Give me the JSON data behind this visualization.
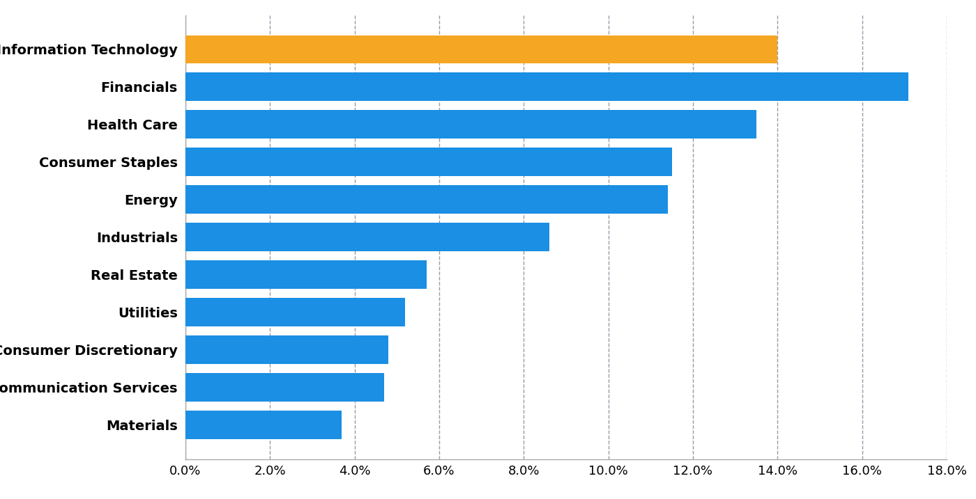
{
  "categories": [
    "Information Technology",
    "Financials",
    "Health Care",
    "Consumer Staples",
    "Energy",
    "Industrials",
    "Real Estate",
    "Utilities",
    "Consumer Discretionary",
    "Communication Services",
    "Materials"
  ],
  "values": [
    0.14,
    0.171,
    0.135,
    0.115,
    0.114,
    0.086,
    0.057,
    0.052,
    0.048,
    0.047,
    0.037
  ],
  "bar_colors": [
    "#F5A623",
    "#1A8FE3",
    "#1A8FE3",
    "#1A8FE3",
    "#1A8FE3",
    "#1A8FE3",
    "#1A8FE3",
    "#1A8FE3",
    "#1A8FE3",
    "#1A8FE3",
    "#1A8FE3"
  ],
  "xlim": [
    0,
    0.18
  ],
  "xticks": [
    0.0,
    0.02,
    0.04,
    0.06,
    0.08,
    0.1,
    0.12,
    0.14,
    0.16,
    0.18
  ],
  "background_color": "#FFFFFF",
  "grid_color": "#9999AA",
  "bar_height": 0.75,
  "tick_label_fontsize": 14,
  "axis_label_fontsize": 13,
  "spine_color": "#AAAAAA"
}
